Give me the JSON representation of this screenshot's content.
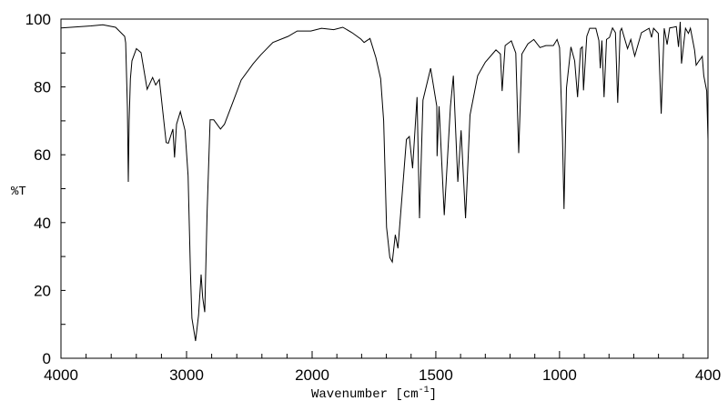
{
  "chart_data": {
    "type": "line",
    "title": "",
    "xlabel": "Wavenumber [cm-1]",
    "xlabel_parts": {
      "main": "Wavenumber [cm",
      "sup": "-1",
      "end": "]"
    },
    "ylabel": "%T",
    "xlim": [
      4000,
      400
    ],
    "ylim": [
      0,
      100
    ],
    "x_axis_break": 2000,
    "x_ticks": [
      4000,
      3000,
      2000,
      1500,
      1000,
      400
    ],
    "x_tick_labels": [
      "4000",
      "3000",
      "2000",
      "1500",
      "1000",
      "400"
    ],
    "y_ticks": [
      0,
      20,
      40,
      60,
      80,
      100
    ],
    "y_tick_labels": [
      "0",
      "20",
      "40",
      "60",
      "80",
      "100"
    ],
    "grid": false,
    "series": [
      {
        "name": "spectrum",
        "color": "#000000",
        "points": [
          [
            4000,
            97.4
          ],
          [
            3761,
            98.0
          ],
          [
            3667,
            98.3
          ],
          [
            3565,
            97.6
          ],
          [
            3493,
            94.9
          ],
          [
            3485,
            93
          ],
          [
            3471,
            74
          ],
          [
            3464,
            52
          ],
          [
            3457,
            70
          ],
          [
            3447,
            82.4
          ],
          [
            3435,
            87.7
          ],
          [
            3399,
            91.3
          ],
          [
            3362,
            90.1
          ],
          [
            3314,
            79.3
          ],
          [
            3270,
            82.8
          ],
          [
            3246,
            80.6
          ],
          [
            3217,
            82.2
          ],
          [
            3162,
            63.6
          ],
          [
            3145,
            63.4
          ],
          [
            3109,
            67.6
          ],
          [
            3096,
            59.2
          ],
          [
            3080,
            69
          ],
          [
            3049,
            72.7
          ],
          [
            3012,
            67.2
          ],
          [
            2988,
            53.8
          ],
          [
            2969,
            25.2
          ],
          [
            2957,
            11.8
          ],
          [
            2928,
            5.1
          ],
          [
            2904,
            12.7
          ],
          [
            2884,
            24.7
          ],
          [
            2872,
            18
          ],
          [
            2855,
            13.6
          ],
          [
            2836,
            43.1
          ],
          [
            2812,
            70.3
          ],
          [
            2783,
            70.3
          ],
          [
            2730,
            67.6
          ],
          [
            2698,
            69
          ],
          [
            2625,
            76.1
          ],
          [
            2565,
            82
          ],
          [
            2469,
            86.9
          ],
          [
            2408,
            89.5
          ],
          [
            2312,
            93.1
          ],
          [
            2191,
            94.9
          ],
          [
            2119,
            96.5
          ],
          [
            2010,
            96.5
          ],
          [
            1962,
            97.3
          ],
          [
            1913,
            96.9
          ],
          [
            1876,
            97.6
          ],
          [
            1839,
            96
          ],
          [
            1803,
            94.1
          ],
          [
            1790,
            93.1
          ],
          [
            1766,
            94.3
          ],
          [
            1742,
            88.6
          ],
          [
            1723,
            82.4
          ],
          [
            1711,
            70
          ],
          [
            1699,
            38.6
          ],
          [
            1686,
            29.7
          ],
          [
            1676,
            28.4
          ],
          [
            1664,
            36.4
          ],
          [
            1653,
            32.4
          ],
          [
            1637,
            47.5
          ],
          [
            1619,
            64.5
          ],
          [
            1607,
            65.4
          ],
          [
            1594,
            56
          ],
          [
            1576,
            77
          ],
          [
            1566,
            41.3
          ],
          [
            1552,
            76.1
          ],
          [
            1521,
            85.5
          ],
          [
            1496,
            74.3
          ],
          [
            1495,
            59.6
          ],
          [
            1487,
            74.3
          ],
          [
            1466,
            42.2
          ],
          [
            1441,
            74.3
          ],
          [
            1429,
            83.3
          ],
          [
            1411,
            52
          ],
          [
            1398,
            67.2
          ],
          [
            1380,
            41.3
          ],
          [
            1362,
            71.7
          ],
          [
            1331,
            83.3
          ],
          [
            1300,
            87.3
          ],
          [
            1257,
            90.9
          ],
          [
            1239,
            89.7
          ],
          [
            1232,
            78.8
          ],
          [
            1220,
            92.2
          ],
          [
            1195,
            93.6
          ],
          [
            1177,
            90
          ],
          [
            1165,
            60.5
          ],
          [
            1152,
            89.7
          ],
          [
            1128,
            92.7
          ],
          [
            1104,
            94
          ],
          [
            1079,
            91.6
          ],
          [
            1055,
            92.2
          ],
          [
            1025,
            92.2
          ],
          [
            1010,
            94
          ],
          [
            1000,
            91.6
          ],
          [
            988,
            65.4
          ],
          [
            982,
            44
          ],
          [
            972,
            79.7
          ],
          [
            954,
            91.8
          ],
          [
            939,
            87.7
          ],
          [
            927,
            77
          ],
          [
            915,
            91.3
          ],
          [
            908,
            91.8
          ],
          [
            903,
            79
          ],
          [
            890,
            94.9
          ],
          [
            878,
            97.3
          ],
          [
            853,
            97.3
          ],
          [
            841,
            93.7
          ],
          [
            835,
            85.5
          ],
          [
            829,
            93.7
          ],
          [
            820,
            77
          ],
          [
            810,
            94
          ],
          [
            798,
            94.6
          ],
          [
            786,
            97.4
          ],
          [
            774,
            96
          ],
          [
            765,
            75.3
          ],
          [
            755,
            96.4
          ],
          [
            749,
            97.3
          ],
          [
            725,
            91.3
          ],
          [
            712,
            94
          ],
          [
            696,
            89.1
          ],
          [
            669,
            96
          ],
          [
            638,
            97.3
          ],
          [
            628,
            94.6
          ],
          [
            620,
            97.3
          ],
          [
            601,
            95.8
          ],
          [
            589,
            72.1
          ],
          [
            577,
            97.3
          ],
          [
            565,
            92.5
          ],
          [
            555,
            97.4
          ],
          [
            540,
            97.6
          ],
          [
            528,
            97.8
          ],
          [
            519,
            91.8
          ],
          [
            512,
            99.2
          ],
          [
            507,
            86.9
          ],
          [
            491,
            97.3
          ],
          [
            479,
            95.8
          ],
          [
            471,
            97.3
          ],
          [
            454,
            90.8
          ],
          [
            448,
            86.4
          ],
          [
            436,
            87.7
          ],
          [
            423,
            89
          ],
          [
            417,
            83.3
          ],
          [
            405,
            78.8
          ],
          [
            400,
            64.5
          ]
        ]
      }
    ]
  }
}
